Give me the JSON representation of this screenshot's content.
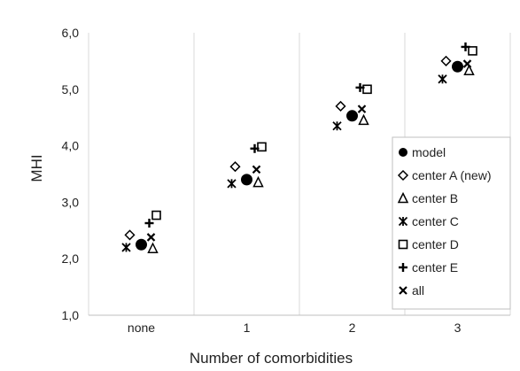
{
  "chart_data": {
    "type": "scatter",
    "title": "",
    "xlabel": "Number of comorbidities",
    "ylabel": "MHI",
    "categories": [
      "none",
      "1",
      "2",
      "3"
    ],
    "ylim": [
      1.0,
      6.0
    ],
    "yticks": [
      "1,0",
      "2,0",
      "3,0",
      "4,0",
      "5,0",
      "6,0"
    ],
    "grid": "vertical",
    "legend_position": "right",
    "series": [
      {
        "name": "model",
        "marker": "filled-circle",
        "values": [
          2.25,
          3.4,
          4.53,
          5.4
        ]
      },
      {
        "name": "center A (new)",
        "marker": "diamond",
        "values": [
          2.42,
          3.63,
          4.7,
          5.5
        ]
      },
      {
        "name": "center B",
        "marker": "triangle",
        "values": [
          2.18,
          3.35,
          4.45,
          5.33
        ]
      },
      {
        "name": "center C",
        "marker": "asterisk",
        "values": [
          2.2,
          3.33,
          4.35,
          5.18
        ]
      },
      {
        "name": "center D",
        "marker": "square",
        "values": [
          2.77,
          3.98,
          5.0,
          5.68
        ]
      },
      {
        "name": "center E",
        "marker": "plus",
        "values": [
          2.63,
          3.95,
          5.03,
          5.75
        ]
      },
      {
        "name": "all",
        "marker": "x",
        "values": [
          2.38,
          3.58,
          4.65,
          5.45
        ]
      }
    ]
  },
  "colors": {
    "marker": "#000000",
    "gridline": "#d9d9d9",
    "axis": "#bfbfbf",
    "legend_border": "#bfbfbf"
  }
}
